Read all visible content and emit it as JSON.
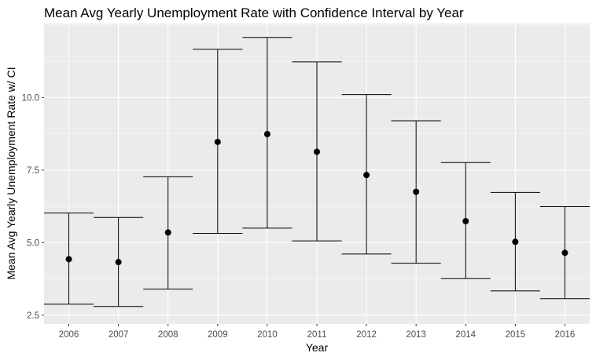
{
  "chart_data": {
    "type": "errorbar",
    "title": "Mean Avg Yearly Unemployment Rate with Confidence Interval by Year",
    "xlabel": "Year",
    "ylabel": "Mean Avg Yearly Unemployment Rate w/ CI",
    "categories": [
      "2006",
      "2007",
      "2008",
      "2009",
      "2010",
      "2011",
      "2012",
      "2013",
      "2014",
      "2015",
      "2016"
    ],
    "mean": [
      4.43,
      4.33,
      5.35,
      8.47,
      8.74,
      8.13,
      7.33,
      6.75,
      5.74,
      5.03,
      4.65
    ],
    "lower": [
      2.88,
      2.8,
      3.4,
      5.32,
      5.5,
      5.06,
      4.61,
      4.29,
      3.76,
      3.34,
      3.07
    ],
    "upper": [
      6.02,
      5.87,
      7.27,
      11.66,
      12.07,
      11.23,
      10.1,
      9.2,
      7.76,
      6.73,
      6.24
    ],
    "ylim": [
      2.2,
      12.55
    ],
    "yticks": [
      2.5,
      5.0,
      7.5,
      10.0
    ],
    "ytick_labels": [
      "2.5",
      "5.0",
      "7.5",
      "10.0"
    ],
    "grid": true,
    "legend": "none",
    "colors": {
      "panel_background": "#ebebeb",
      "grid_major": "#ffffff",
      "mark": "#000000",
      "tick_text": "#4d4d4d"
    }
  }
}
